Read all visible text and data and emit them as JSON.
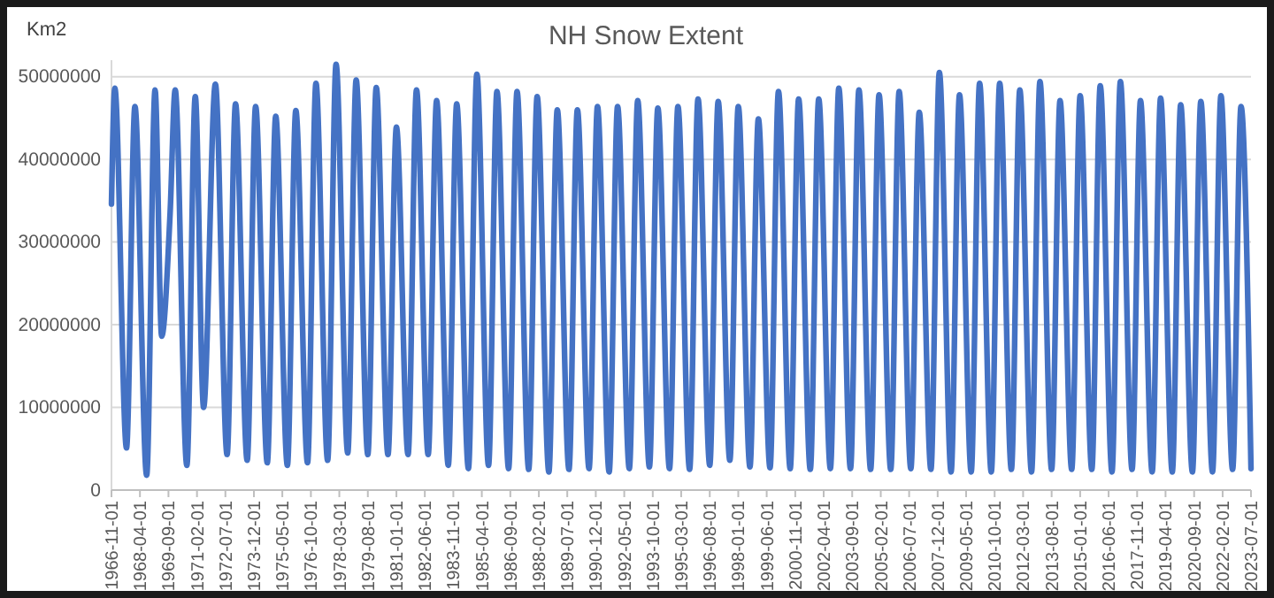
{
  "chart_data": {
    "type": "line",
    "title": "NH Snow Extent",
    "ylabel": "Km2",
    "x": [
      "1966-11",
      "1967-01",
      "1967-08",
      "1968-01",
      "1968-08",
      "1969-01",
      "1969-05",
      "1969-10",
      "1970-01",
      "1970-08",
      "1971-01",
      "1971-06",
      "1972-01",
      "1972-08",
      "1973-01",
      "1973-08",
      "1974-01",
      "1974-08",
      "1975-01",
      "1975-08",
      "1976-01",
      "1976-08",
      "1977-01",
      "1977-08",
      "1978-01",
      "1978-08",
      "1979-01",
      "1979-08",
      "1980-01",
      "1980-08",
      "1981-01",
      "1981-08",
      "1982-01",
      "1982-08",
      "1983-01",
      "1983-08",
      "1984-01",
      "1984-08",
      "1985-01",
      "1985-08",
      "1986-01",
      "1986-08",
      "1987-01",
      "1987-08",
      "1988-01",
      "1988-08",
      "1989-01",
      "1989-08",
      "1990-01",
      "1990-08",
      "1991-01",
      "1991-08",
      "1992-01",
      "1992-08",
      "1993-01",
      "1993-08",
      "1994-01",
      "1994-08",
      "1995-01",
      "1995-08",
      "1996-01",
      "1996-08",
      "1997-01",
      "1997-08",
      "1998-01",
      "1998-08",
      "1999-01",
      "1999-08",
      "2000-01",
      "2000-08",
      "2001-01",
      "2001-08",
      "2002-01",
      "2002-08",
      "2003-01",
      "2003-08",
      "2004-01",
      "2004-08",
      "2005-01",
      "2005-08",
      "2006-01",
      "2006-08",
      "2007-01",
      "2007-08",
      "2008-01",
      "2008-08",
      "2009-01",
      "2009-08",
      "2010-01",
      "2010-08",
      "2011-01",
      "2011-08",
      "2012-01",
      "2012-08",
      "2013-01",
      "2013-08",
      "2014-01",
      "2014-08",
      "2015-01",
      "2015-08",
      "2016-01",
      "2016-08",
      "2017-01",
      "2017-08",
      "2018-01",
      "2018-08",
      "2019-01",
      "2019-08",
      "2020-01",
      "2020-08",
      "2021-01",
      "2021-08",
      "2022-01",
      "2022-08",
      "2023-01",
      "2023-07"
    ],
    "series": [
      {
        "color": "#4472c4",
        "values": [
          34600000,
          48600000,
          5100000,
          46400000,
          1800000,
          48400000,
          18600000,
          33500000,
          48400000,
          3000000,
          47600000,
          10000000,
          49100000,
          4300000,
          46700000,
          3600000,
          46400000,
          3300000,
          45200000,
          3000000,
          45900000,
          3300000,
          49200000,
          3600000,
          51500000,
          4500000,
          49600000,
          4300000,
          48700000,
          4300000,
          43900000,
          4300000,
          48400000,
          4300000,
          47100000,
          3000000,
          46700000,
          2600000,
          50300000,
          3000000,
          48200000,
          2600000,
          48200000,
          2500000,
          47600000,
          2200000,
          46000000,
          2500000,
          46000000,
          2600000,
          46400000,
          2200000,
          46400000,
          2600000,
          47100000,
          2800000,
          46200000,
          2600000,
          46400000,
          2500000,
          47300000,
          3000000,
          47000000,
          3600000,
          46400000,
          2800000,
          44900000,
          2700000,
          48200000,
          2600000,
          47300000,
          2500000,
          47300000,
          2600000,
          48600000,
          2600000,
          48400000,
          2500000,
          47800000,
          2500000,
          48200000,
          2600000,
          45700000,
          2500000,
          50500000,
          2200000,
          47800000,
          2200000,
          49200000,
          2200000,
          49200000,
          2500000,
          48400000,
          2200000,
          49400000,
          2500000,
          47100000,
          2500000,
          47700000,
          2500000,
          48900000,
          2200000,
          49400000,
          2500000,
          47100000,
          2200000,
          47400000,
          2200000,
          46600000,
          2200000,
          47000000,
          2200000,
          47700000,
          2500000,
          46400000,
          2600000
        ]
      }
    ],
    "xlim": [
      "1966-11-01",
      "2023-07-01"
    ],
    "xticks": [
      "1966-11-01",
      "1968-04-01",
      "1969-09-01",
      "1971-02-01",
      "1972-07-01",
      "1973-12-01",
      "1975-05-01",
      "1976-10-01",
      "1978-03-01",
      "1979-08-01",
      "1981-01-01",
      "1982-06-01",
      "1983-11-01",
      "1985-04-01",
      "1986-09-01",
      "1988-02-01",
      "1989-07-01",
      "1990-12-01",
      "1992-05-01",
      "1993-10-01",
      "1995-03-01",
      "1996-08-01",
      "1998-01-01",
      "1999-06-01",
      "2000-11-01",
      "2002-04-01",
      "2003-09-01",
      "2005-02-01",
      "2006-07-01",
      "2007-12-01",
      "2009-05-01",
      "2010-10-01",
      "2012-03-01",
      "2013-08-01",
      "2015-01-01",
      "2016-06-01",
      "2017-11-01",
      "2019-04-01",
      "2020-09-01",
      "2022-02-01",
      "2023-07-01"
    ],
    "ylim": [
      0,
      52000000
    ],
    "yticks": [
      0,
      10000000,
      20000000,
      30000000,
      40000000,
      50000000
    ],
    "grid": "y",
    "line_style": "solid",
    "marker": "none"
  }
}
